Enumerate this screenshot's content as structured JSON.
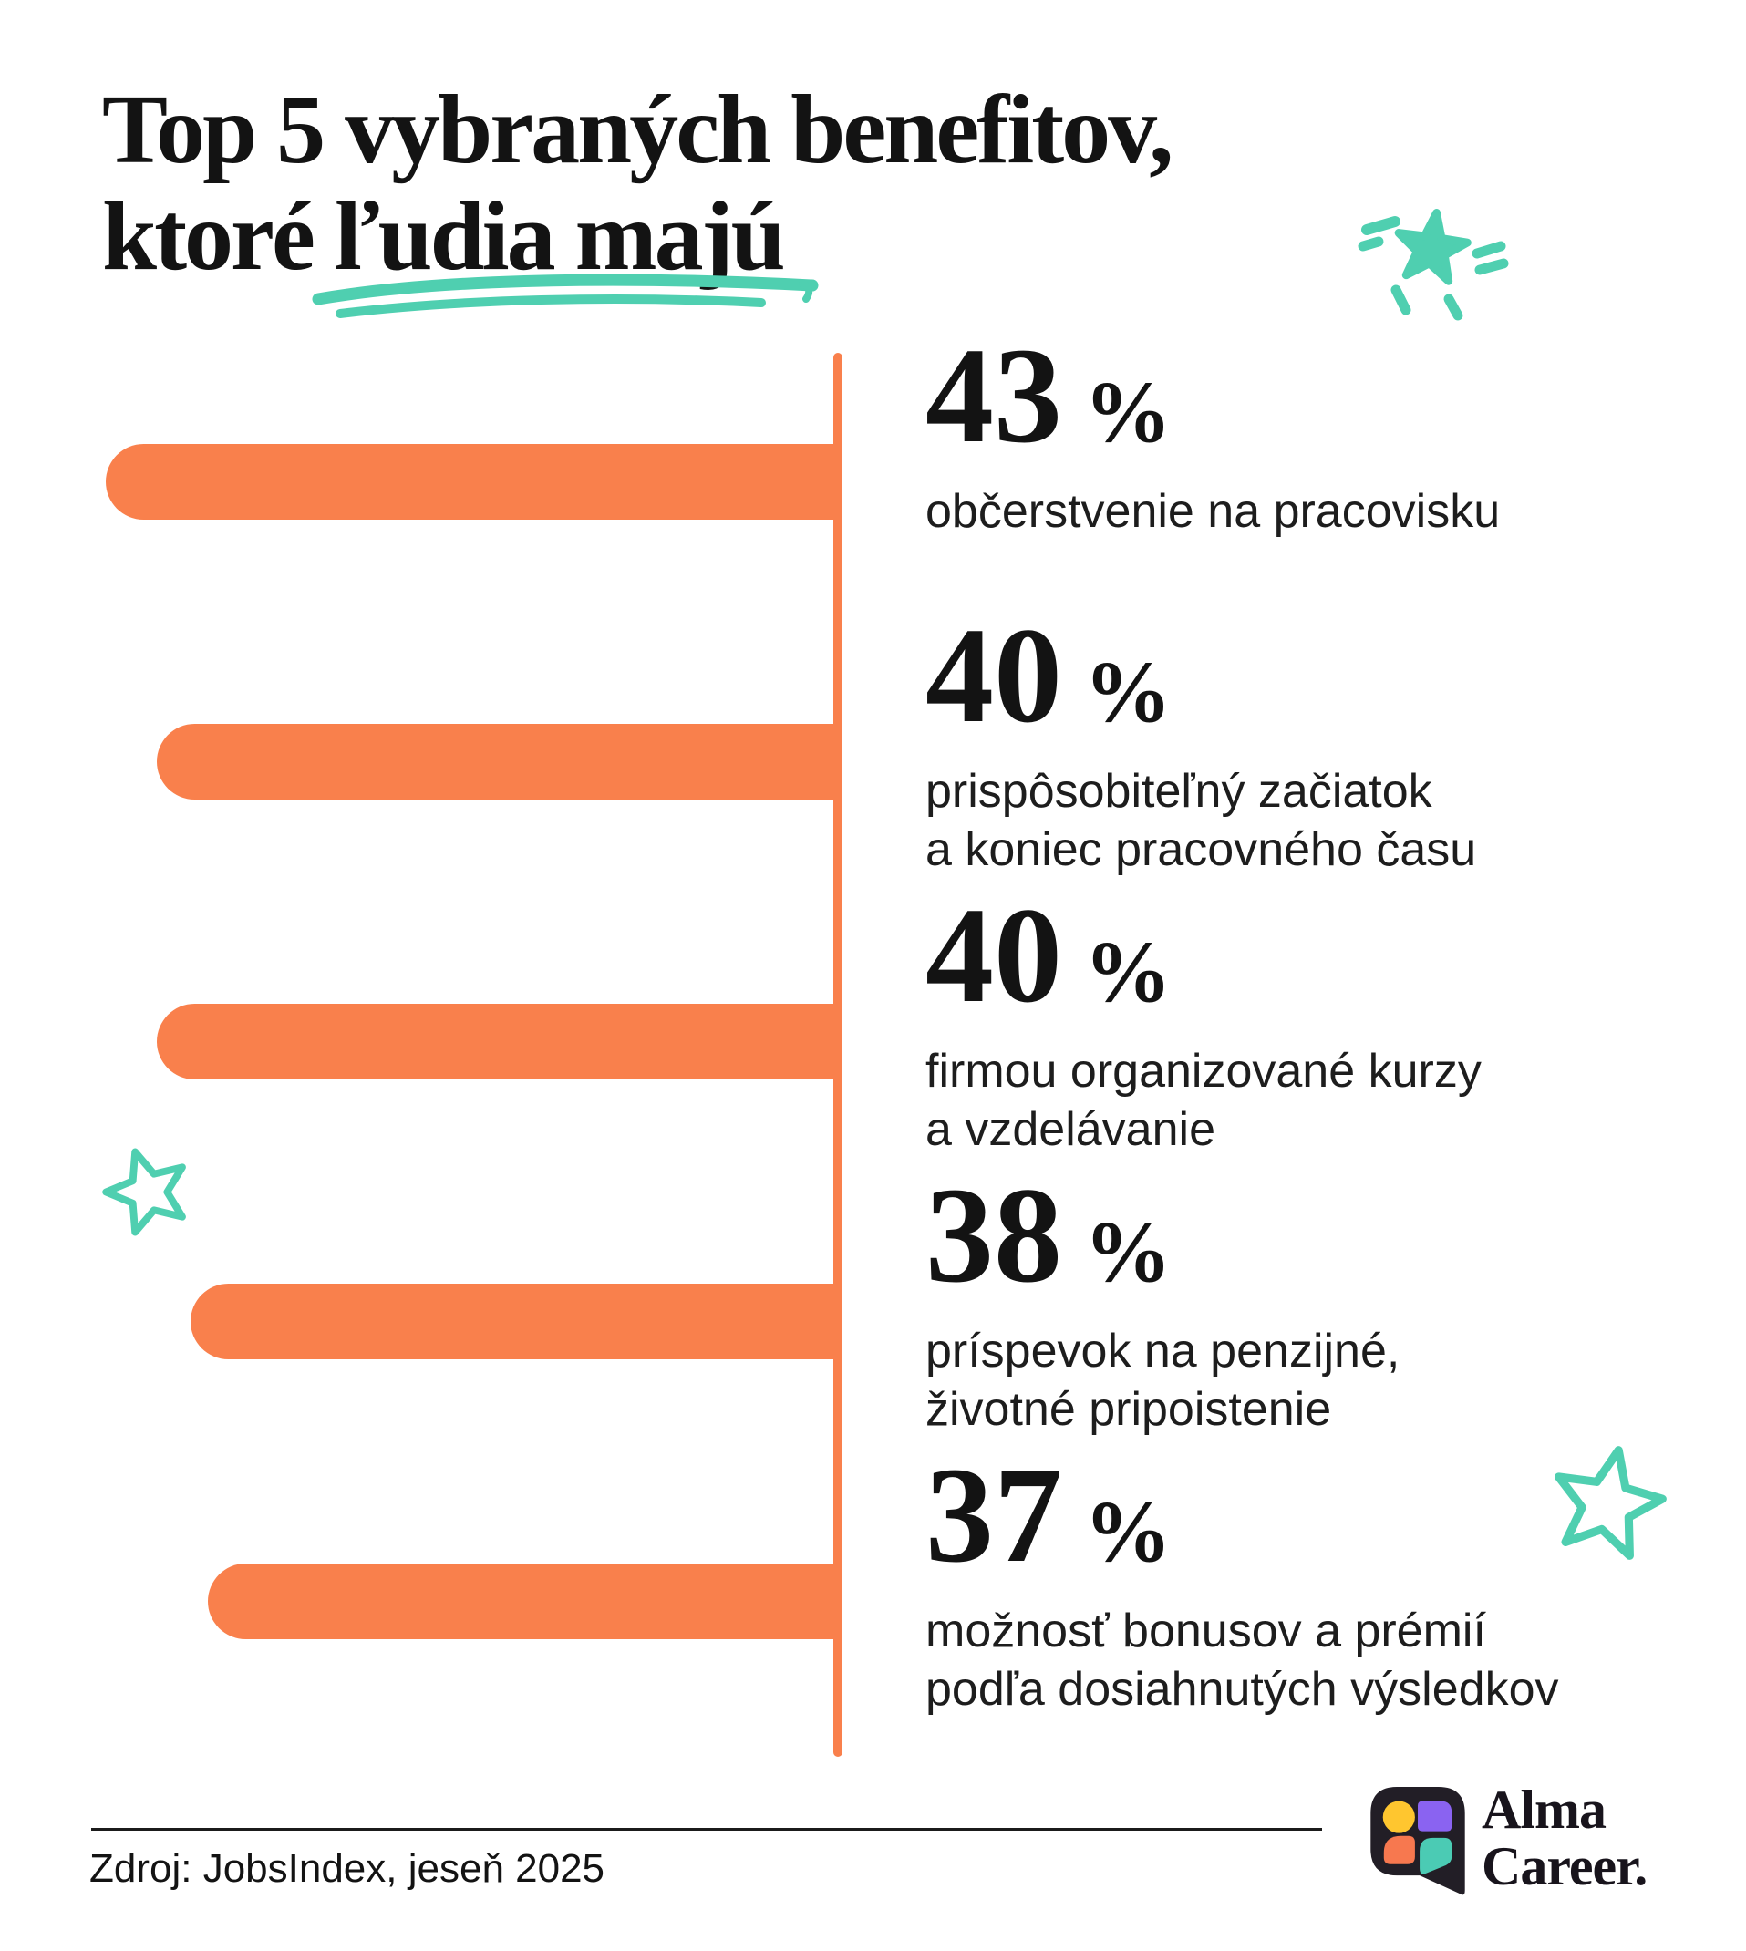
{
  "title": {
    "line1": "Top 5 vybraných benefitov,",
    "line2": "ktoré ľudia majú"
  },
  "chart_data": {
    "type": "bar",
    "orientation": "horizontal",
    "title": "Top 5 vybraných benefitov, ktoré ľudia majú",
    "unit": "%",
    "values": [
      43,
      40,
      40,
      38,
      37
    ],
    "categories": [
      "občerstvenie na pracovisku",
      "prispôsobiteľný začiatok a koniec pracovného času",
      "firmou organizované kurzy a vzdelávanie",
      "príspevok na penzijné, životné pripoistenie",
      "možnosť bonusov a prémií podľa dosiahnutých výsledkov"
    ],
    "xlim": [
      0,
      43
    ],
    "grid": false,
    "legend": false,
    "bar_color": "#F9804C",
    "items": [
      {
        "value": 43,
        "label_lines": [
          "občerstvenie na pracovisku",
          ""
        ]
      },
      {
        "value": 40,
        "label_lines": [
          "prispôsobiteľný začiatok",
          "a koniec pracovného času"
        ]
      },
      {
        "value": 40,
        "label_lines": [
          "firmou organizované kurzy",
          "a vzdelávanie"
        ]
      },
      {
        "value": 38,
        "label_lines": [
          "príspevok na penzijné,",
          "životné pripoistenie"
        ]
      },
      {
        "value": 37,
        "label_lines": [
          "možnosť bonusov a prémií",
          "podľa dosiahnutých výsledkov"
        ]
      }
    ]
  },
  "footer": {
    "source": "Zdroj: JobsIndex, jeseň 2025",
    "brand": {
      "line1": "Alma",
      "line2": "Career."
    }
  },
  "icons": {
    "sparkle": "sparkle-star",
    "star_left": "hand-drawn-star-outline",
    "star_right": "hand-drawn-star-outline",
    "underline": "marker-underline-swoosh",
    "logo": "alma-career-speech-bubble"
  },
  "colors": {
    "bar_orange": "#F9804C",
    "accent_teal": "#4FCFB0",
    "text_black": "#131313",
    "logo_bubble": "#221E26",
    "logo_yellow": "#FFC62F",
    "logo_purple": "#8A63F1",
    "logo_orange": "#F7784F",
    "logo_teal": "#4BCBB4"
  }
}
